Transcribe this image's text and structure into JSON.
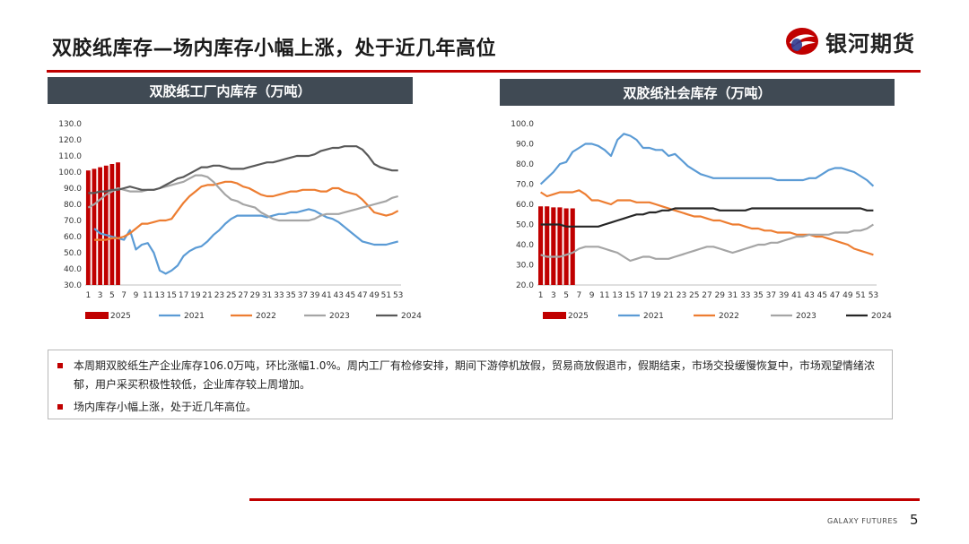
{
  "page": {
    "title": "双胶纸库存—场内库存小幅上涨，处于近几年高位",
    "logo_text": "银河期货",
    "footer_brand": "GALAXY FUTURES",
    "page_number": "5",
    "colors": {
      "accent": "#c00000",
      "header_bar": "#404a54"
    }
  },
  "notes": [
    "本周期双胶纸生产企业库存106.0万吨，环比涨幅1.0%。周内工厂有检修安排，期间下游停机放假，贸易商放假退市，假期结束，市场交投缓慢恢复中，市场观望情绪浓郁，用户采买积极性较低，企业库存较上周增加。",
    "场内库存小幅上涨，处于近几年高位。"
  ],
  "chart_data": [
    {
      "type": "line",
      "title": "双胶纸工厂内库存（万吨）",
      "ylim": [
        30,
        130
      ],
      "yticks": [
        "30.0",
        "40.0",
        "50.0",
        "60.0",
        "70.0",
        "80.0",
        "90.0",
        "100.0",
        "110.0",
        "120.0",
        "130.0"
      ],
      "xlim": [
        1,
        53
      ],
      "xticks": [
        "1",
        "3",
        "5",
        "7",
        "9",
        "11",
        "13",
        "15",
        "17",
        "19",
        "21",
        "23",
        "25",
        "27",
        "29",
        "31",
        "33",
        "35",
        "37",
        "39",
        "41",
        "43",
        "45",
        "47",
        "49",
        "51",
        "53"
      ],
      "series": [
        {
          "name": "2025",
          "kind": "bar",
          "color": "#c00000",
          "x": [
            1,
            2,
            3,
            4,
            5,
            6
          ],
          "values": [
            101,
            102,
            103,
            104,
            105,
            106
          ]
        },
        {
          "name": "2021",
          "kind": "line",
          "color": "#5b9bd5",
          "x": [
            2,
            3,
            4,
            5,
            6,
            7,
            8,
            9,
            10,
            11,
            12,
            13,
            14,
            15,
            16,
            17,
            18,
            19,
            20,
            21,
            22,
            23,
            24,
            25,
            26,
            27,
            28,
            29,
            30,
            31,
            32,
            33,
            34,
            35,
            36,
            37,
            38,
            39,
            40,
            41,
            42,
            43,
            44,
            45,
            46,
            47,
            48,
            49,
            50,
            51,
            52,
            53
          ],
          "values": [
            65,
            62,
            61,
            60,
            59,
            58,
            64,
            52,
            55,
            56,
            50,
            39,
            37,
            39,
            42,
            48,
            51,
            53,
            54,
            57,
            61,
            64,
            68,
            71,
            73,
            73,
            73,
            73,
            73,
            72,
            73,
            74,
            74,
            75,
            75,
            76,
            77,
            76,
            74,
            72,
            71,
            69,
            66,
            63,
            60,
            57,
            56,
            55,
            55,
            55,
            56,
            57
          ]
        },
        {
          "name": "2022",
          "kind": "line",
          "color": "#ed7d31",
          "x": [
            2,
            3,
            4,
            5,
            6,
            7,
            8,
            9,
            10,
            11,
            12,
            13,
            14,
            15,
            16,
            17,
            18,
            19,
            20,
            21,
            22,
            23,
            24,
            25,
            26,
            27,
            28,
            29,
            30,
            31,
            32,
            33,
            34,
            35,
            36,
            37,
            38,
            39,
            40,
            41,
            42,
            43,
            44,
            45,
            46,
            47,
            48,
            49,
            50,
            51,
            52,
            53
          ],
          "values": [
            58,
            58,
            58,
            59,
            59,
            60,
            62,
            65,
            68,
            68,
            69,
            70,
            70,
            71,
            76,
            81,
            85,
            88,
            91,
            92,
            92,
            93,
            94,
            94,
            93,
            91,
            90,
            88,
            86,
            85,
            85,
            86,
            87,
            88,
            88,
            89,
            89,
            89,
            88,
            88,
            90,
            90,
            88,
            87,
            86,
            83,
            79,
            75,
            74,
            73,
            74,
            76
          ]
        },
        {
          "name": "2023",
          "kind": "line",
          "color": "#a5a5a5",
          "x": [
            1,
            2,
            3,
            4,
            5,
            6,
            7,
            8,
            9,
            10,
            11,
            12,
            13,
            14,
            15,
            16,
            17,
            18,
            19,
            20,
            21,
            22,
            23,
            24,
            25,
            26,
            27,
            28,
            29,
            30,
            31,
            32,
            33,
            34,
            35,
            36,
            37,
            38,
            39,
            40,
            41,
            42,
            43,
            44,
            45,
            46,
            47,
            48,
            49,
            50,
            51,
            52,
            53
          ],
          "values": [
            78,
            80,
            83,
            86,
            88,
            90,
            89,
            88,
            88,
            88,
            89,
            89,
            90,
            91,
            92,
            93,
            94,
            96,
            98,
            98,
            97,
            94,
            90,
            86,
            83,
            82,
            80,
            79,
            78,
            75,
            73,
            71,
            70,
            70,
            70,
            70,
            70,
            70,
            71,
            73,
            74,
            74,
            74,
            75,
            76,
            77,
            78,
            79,
            80,
            81,
            82,
            84,
            85
          ]
        },
        {
          "name": "2024",
          "kind": "line",
          "color": "#595959",
          "x": [
            1,
            2,
            3,
            4,
            5,
            6,
            7,
            8,
            9,
            10,
            11,
            12,
            13,
            14,
            15,
            16,
            17,
            18,
            19,
            20,
            21,
            22,
            23,
            24,
            25,
            26,
            27,
            28,
            29,
            30,
            31,
            32,
            33,
            34,
            35,
            36,
            37,
            38,
            39,
            40,
            41,
            42,
            43,
            44,
            45,
            46,
            47,
            48,
            49,
            50,
            51,
            52,
            53
          ],
          "values": [
            87,
            87,
            88,
            88,
            89,
            89,
            90,
            91,
            90,
            89,
            89,
            89,
            90,
            92,
            94,
            96,
            97,
            99,
            101,
            103,
            103,
            104,
            104,
            103,
            102,
            102,
            102,
            103,
            104,
            105,
            106,
            106,
            107,
            108,
            109,
            110,
            110,
            110,
            111,
            113,
            114,
            115,
            115,
            116,
            116,
            116,
            114,
            110,
            105,
            103,
            102,
            101,
            101
          ]
        }
      ]
    },
    {
      "type": "line",
      "title": "双胶纸社会库存（万吨）",
      "ylim": [
        20,
        100
      ],
      "yticks": [
        "20.0",
        "30.0",
        "40.0",
        "50.0",
        "60.0",
        "70.0",
        "80.0",
        "90.0",
        "100.0"
      ],
      "xlim": [
        1,
        53
      ],
      "xticks": [
        "1",
        "3",
        "5",
        "7",
        "9",
        "11",
        "13",
        "15",
        "17",
        "19",
        "21",
        "23",
        "25",
        "27",
        "29",
        "31",
        "33",
        "35",
        "37",
        "39",
        "41",
        "43",
        "45",
        "47",
        "49",
        "51",
        "53"
      ],
      "series": [
        {
          "name": "2025",
          "kind": "bar",
          "color": "#c00000",
          "x": [
            1,
            2,
            3,
            4,
            5,
            6
          ],
          "values": [
            59,
            59,
            58.5,
            58.5,
            58,
            58
          ]
        },
        {
          "name": "2021",
          "kind": "line",
          "color": "#5b9bd5",
          "x": [
            1,
            2,
            3,
            4,
            5,
            6,
            7,
            8,
            9,
            10,
            11,
            12,
            13,
            14,
            15,
            16,
            17,
            18,
            19,
            20,
            21,
            22,
            23,
            24,
            25,
            26,
            27,
            28,
            29,
            30,
            31,
            32,
            33,
            34,
            35,
            36,
            37,
            38,
            39,
            40,
            41,
            42,
            43,
            44,
            45,
            46,
            47,
            48,
            49,
            50,
            51,
            52,
            53
          ],
          "values": [
            70,
            73,
            76,
            80,
            81,
            86,
            88,
            90,
            90,
            89,
            87,
            84,
            92,
            95,
            94,
            92,
            88,
            88,
            87,
            87,
            84,
            85,
            82,
            79,
            77,
            75,
            74,
            73,
            73,
            73,
            73,
            73,
            73,
            73,
            73,
            73,
            73,
            72,
            72,
            72,
            72,
            72,
            73,
            73,
            75,
            77,
            78,
            78,
            77,
            76,
            74,
            72,
            69
          ]
        },
        {
          "name": "2022",
          "kind": "line",
          "color": "#ed7d31",
          "x": [
            1,
            2,
            3,
            4,
            5,
            6,
            7,
            8,
            9,
            10,
            11,
            12,
            13,
            14,
            15,
            16,
            17,
            18,
            19,
            20,
            21,
            22,
            23,
            24,
            25,
            26,
            27,
            28,
            29,
            30,
            31,
            32,
            33,
            34,
            35,
            36,
            37,
            38,
            39,
            40,
            41,
            42,
            43,
            44,
            45,
            46,
            47,
            48,
            49,
            50,
            51,
            52,
            53
          ],
          "values": [
            66,
            64,
            65,
            66,
            66,
            66,
            67,
            65,
            62,
            62,
            61,
            60,
            62,
            62,
            62,
            61,
            61,
            61,
            60,
            59,
            58,
            57,
            56,
            55,
            54,
            54,
            53,
            52,
            52,
            51,
            50,
            50,
            49,
            48,
            48,
            47,
            47,
            46,
            46,
            46,
            45,
            45,
            45,
            44,
            44,
            43,
            42,
            41,
            40,
            38,
            37,
            36,
            35
          ]
        },
        {
          "name": "2023",
          "kind": "line",
          "color": "#a5a5a5",
          "x": [
            1,
            2,
            3,
            4,
            5,
            6,
            7,
            8,
            9,
            10,
            11,
            12,
            13,
            14,
            15,
            16,
            17,
            18,
            19,
            20,
            21,
            22,
            23,
            24,
            25,
            26,
            27,
            28,
            29,
            30,
            31,
            32,
            33,
            34,
            35,
            36,
            37,
            38,
            39,
            40,
            41,
            42,
            43,
            44,
            45,
            46,
            47,
            48,
            49,
            50,
            51,
            52,
            53
          ],
          "values": [
            35,
            34,
            34,
            34,
            35,
            36,
            38,
            39,
            39,
            39,
            38,
            37,
            36,
            34,
            32,
            33,
            34,
            34,
            33,
            33,
            33,
            34,
            35,
            36,
            37,
            38,
            39,
            39,
            38,
            37,
            36,
            37,
            38,
            39,
            40,
            40,
            41,
            41,
            42,
            43,
            44,
            44,
            45,
            45,
            45,
            45,
            46,
            46,
            46,
            47,
            47,
            48,
            50
          ]
        },
        {
          "name": "2024",
          "kind": "line",
          "color": "#262626",
          "x": [
            1,
            2,
            3,
            4,
            5,
            6,
            7,
            8,
            9,
            10,
            11,
            12,
            13,
            14,
            15,
            16,
            17,
            18,
            19,
            20,
            21,
            22,
            23,
            24,
            25,
            26,
            27,
            28,
            29,
            30,
            31,
            32,
            33,
            34,
            35,
            36,
            37,
            38,
            39,
            40,
            41,
            42,
            43,
            44,
            45,
            46,
            47,
            48,
            49,
            50,
            51,
            52,
            53
          ],
          "values": [
            50,
            50,
            50,
            50,
            49,
            49,
            49,
            49,
            49,
            49,
            50,
            51,
            52,
            53,
            54,
            55,
            55,
            56,
            56,
            57,
            57,
            58,
            58,
            58,
            58,
            58,
            58,
            58,
            57,
            57,
            57,
            57,
            57,
            58,
            58,
            58,
            58,
            58,
            58,
            58,
            58,
            58,
            58,
            58,
            58,
            58,
            58,
            58,
            58,
            58,
            58,
            57,
            57
          ]
        }
      ]
    }
  ]
}
